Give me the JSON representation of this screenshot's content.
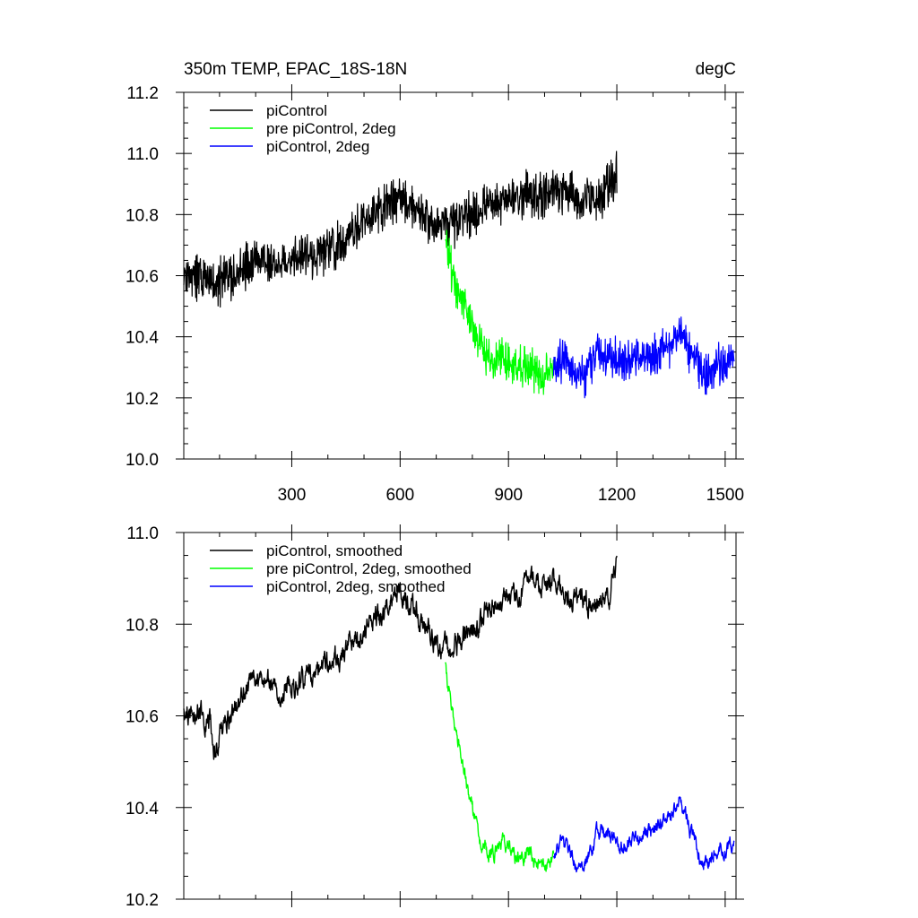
{
  "chart_data": [
    {
      "type": "line",
      "title": "350m TEMP, EPAC_18S-18N",
      "units": "degC",
      "xlabel": "",
      "ylabel": "",
      "xlim": [
        1,
        1530
      ],
      "ylim": [
        10.0,
        11.2
      ],
      "x_ticks": [
        "300",
        "600",
        "900",
        "1200",
        "1500"
      ],
      "y_ticks": [
        "10.0",
        "10.2",
        "10.4",
        "10.6",
        "10.8",
        "11.0",
        "11.2"
      ],
      "legend_position": "top-left",
      "series": [
        {
          "name": "piControl",
          "color": "#000000",
          "x": [
            1,
            50,
            100,
            150,
            200,
            250,
            300,
            350,
            400,
            450,
            500,
            550,
            600,
            650,
            700,
            750,
            800,
            850,
            900,
            950,
            1000,
            1050,
            1100,
            1150,
            1200
          ],
          "values": [
            10.61,
            10.6,
            10.58,
            10.62,
            10.65,
            10.64,
            10.66,
            10.66,
            10.68,
            10.72,
            10.78,
            10.82,
            10.86,
            10.8,
            10.77,
            10.76,
            10.8,
            10.83,
            10.85,
            10.87,
            10.86,
            10.88,
            10.84,
            10.85,
            10.93
          ],
          "noise_amplitude": 0.09
        },
        {
          "name": "pre piControl, 2deg",
          "color": "#00ff00",
          "x": [
            725,
            735,
            745,
            760,
            780,
            800,
            820,
            840,
            860,
            880,
            900,
            925,
            950,
            975,
            1000,
            1025
          ],
          "values": [
            10.71,
            10.66,
            10.6,
            10.55,
            10.5,
            10.45,
            10.38,
            10.33,
            10.31,
            10.34,
            10.32,
            10.3,
            10.3,
            10.28,
            10.27,
            10.3
          ],
          "noise_amplitude": 0.08
        },
        {
          "name": "piControl, 2deg",
          "color": "#0000ff",
          "x": [
            1025,
            1050,
            1075,
            1100,
            1125,
            1150,
            1175,
            1200,
            1250,
            1300,
            1350,
            1380,
            1400,
            1425,
            1450,
            1475,
            1500,
            1525
          ],
          "values": [
            10.3,
            10.33,
            10.3,
            10.26,
            10.3,
            10.35,
            10.34,
            10.32,
            10.33,
            10.34,
            10.37,
            10.41,
            10.36,
            10.3,
            10.28,
            10.31,
            10.31,
            10.33
          ],
          "noise_amplitude": 0.08
        }
      ]
    },
    {
      "type": "line",
      "title": "",
      "xlabel": "",
      "ylabel": "",
      "xlim": [
        1,
        1530
      ],
      "ylim": [
        10.2,
        11.0
      ],
      "x_ticks": [
        "300",
        "600",
        "900",
        "1200",
        "1500"
      ],
      "y_ticks": [
        "10.2",
        "10.4",
        "10.6",
        "10.8",
        "11.0"
      ],
      "legend_position": "top-left",
      "series": [
        {
          "name": "piControl, smoothed",
          "color": "#000000",
          "x": [
            1,
            25,
            50,
            75,
            85,
            100,
            130,
            160,
            200,
            250,
            300,
            350,
            400,
            450,
            500,
            550,
            600,
            650,
            700,
            730,
            760,
            800,
            850,
            900,
            950,
            1000,
            1050,
            1100,
            1150,
            1175,
            1200
          ],
          "values": [
            10.61,
            10.6,
            10.61,
            10.58,
            10.52,
            10.57,
            10.6,
            10.64,
            10.68,
            10.66,
            10.67,
            10.68,
            10.71,
            10.74,
            10.79,
            10.82,
            10.87,
            10.82,
            10.76,
            10.74,
            10.76,
            10.79,
            10.83,
            10.86,
            10.88,
            10.9,
            10.87,
            10.85,
            10.84,
            10.85,
            10.93
          ],
          "noise_amplitude": 0.03
        },
        {
          "name": "pre piControl, 2deg, smoothed",
          "color": "#00ff00",
          "x": [
            725,
            740,
            760,
            780,
            800,
            820,
            840,
            860,
            880,
            900,
            925,
            950,
            975,
            1000,
            1025
          ],
          "values": [
            10.71,
            10.62,
            10.55,
            10.47,
            10.4,
            10.33,
            10.31,
            10.3,
            10.33,
            10.32,
            10.29,
            10.3,
            10.28,
            10.27,
            10.29
          ],
          "noise_amplitude": 0.02
        },
        {
          "name": "piControl, 2deg, smoothed",
          "color": "#0000ff",
          "x": [
            1025,
            1050,
            1075,
            1100,
            1125,
            1150,
            1175,
            1200,
            1250,
            1300,
            1350,
            1375,
            1400,
            1425,
            1450,
            1475,
            1500,
            1525
          ],
          "values": [
            10.29,
            10.33,
            10.3,
            10.25,
            10.3,
            10.35,
            10.34,
            10.32,
            10.33,
            10.35,
            10.38,
            10.42,
            10.36,
            10.3,
            10.27,
            10.3,
            10.31,
            10.32
          ],
          "noise_amplitude": 0.02
        }
      ]
    }
  ]
}
